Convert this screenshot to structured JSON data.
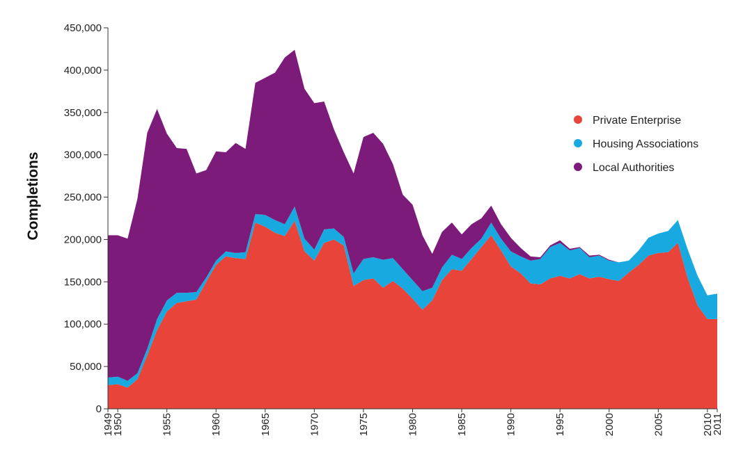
{
  "chart_data": {
    "type": "area",
    "stacked": true,
    "title": "",
    "xlabel": "",
    "ylabel": "Completions",
    "ylim": [
      0,
      450000
    ],
    "yticks": [
      0,
      50000,
      100000,
      150000,
      200000,
      250000,
      300000,
      350000,
      400000,
      450000
    ],
    "ytick_labels": [
      "0",
      "50,000",
      "100,000",
      "150,000",
      "200,000",
      "250,000",
      "300,000",
      "350,000",
      "400,000",
      "450,000"
    ],
    "xlim": [
      1949,
      2011
    ],
    "xticks": [
      1949,
      1950,
      1955,
      1960,
      1965,
      1970,
      1975,
      1980,
      1985,
      1990,
      1995,
      2000,
      2005,
      2010,
      2011
    ],
    "xtick_labels": [
      "1949",
      "1950",
      "1955",
      "1960",
      "1965",
      "1970",
      "1975",
      "1980",
      "1985",
      "1990",
      "1995",
      "2000",
      "2005",
      "2010",
      "2011"
    ],
    "grid": false,
    "legend_position": "right",
    "x": [
      1949,
      1950,
      1951,
      1952,
      1953,
      1954,
      1955,
      1956,
      1957,
      1958,
      1959,
      1960,
      1961,
      1962,
      1963,
      1964,
      1965,
      1966,
      1967,
      1968,
      1969,
      1970,
      1971,
      1972,
      1973,
      1974,
      1975,
      1976,
      1977,
      1978,
      1979,
      1980,
      1981,
      1982,
      1983,
      1984,
      1985,
      1986,
      1987,
      1988,
      1989,
      1990,
      1991,
      1992,
      1993,
      1994,
      1995,
      1996,
      1997,
      1998,
      1999,
      2000,
      2001,
      2002,
      2003,
      2004,
      2005,
      2006,
      2007,
      2008,
      2009,
      2010,
      2011
    ],
    "series": [
      {
        "name": "Private Enterprise",
        "color": "#e8443a",
        "values": [
          28000,
          29000,
          25000,
          35000,
          63000,
          93000,
          115000,
          125000,
          127000,
          129000,
          150000,
          170000,
          180000,
          178000,
          177000,
          220000,
          215000,
          208000,
          204000,
          222000,
          186000,
          175000,
          196000,
          200000,
          193000,
          145000,
          152000,
          154000,
          143000,
          151000,
          142000,
          130000,
          117000,
          128000,
          152000,
          165000,
          163000,
          177000,
          191000,
          205000,
          187000,
          168000,
          160000,
          148000,
          147000,
          154000,
          157000,
          154000,
          159000,
          154000,
          156000,
          153000,
          151000,
          161000,
          170000,
          181000,
          184000,
          185000,
          196000,
          154000,
          122000,
          106000,
          106000
        ]
      },
      {
        "name": "Housing Associations",
        "color": "#18a9e0",
        "values": [
          9000,
          9000,
          8000,
          7000,
          8000,
          13000,
          13000,
          12000,
          10000,
          9000,
          5000,
          5000,
          6000,
          6000,
          8000,
          10000,
          14000,
          15000,
          14000,
          17000,
          15000,
          13000,
          16000,
          13000,
          10000,
          15000,
          25000,
          25000,
          33000,
          27000,
          23000,
          22000,
          22000,
          15000,
          15000,
          17000,
          14000,
          13000,
          10000,
          15000,
          14000,
          18000,
          20000,
          27000,
          30000,
          37000,
          39000,
          33000,
          31000,
          25000,
          25000,
          22000,
          22000,
          14000,
          17000,
          21000,
          23000,
          25000,
          27000,
          34000,
          35000,
          28000,
          30000
        ]
      },
      {
        "name": "Local Authorities",
        "color": "#7c1b7a",
        "values": [
          168000,
          167000,
          168000,
          206000,
          255000,
          248000,
          197000,
          171000,
          170000,
          140000,
          127000,
          129000,
          117000,
          130000,
          122000,
          155000,
          162000,
          174000,
          197000,
          185000,
          177000,
          173000,
          151000,
          117000,
          100000,
          118000,
          144000,
          147000,
          137000,
          111000,
          88000,
          89000,
          66000,
          40000,
          42000,
          38000,
          29000,
          28000,
          24000,
          20000,
          17000,
          16000,
          10000,
          5000,
          2000,
          2000,
          3000,
          2000,
          1000,
          2000,
          1000,
          1000,
          0,
          0,
          0,
          0,
          0,
          0,
          0,
          0,
          0,
          0,
          0
        ]
      }
    ]
  }
}
